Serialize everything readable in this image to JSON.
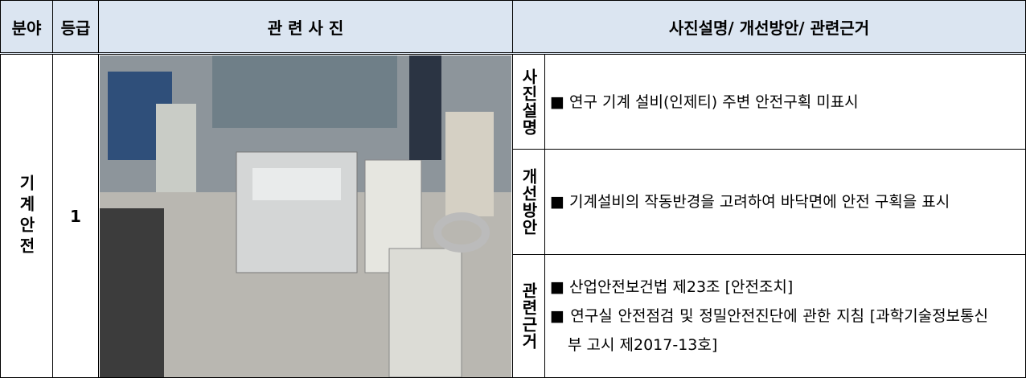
{
  "table": {
    "header": [
      "분야",
      "등급",
      "관 련 사 진",
      "사진설명/ 개선방안/ 관련근거"
    ],
    "row": {
      "field": "기계안전",
      "grade": "1",
      "sections": [
        {
          "label": "사진설명",
          "items": [
            "■ 연구 기계 설비(인제티) 주변 안전구획 미표시"
          ]
        },
        {
          "label": "개선방안",
          "items": [
            "■ 기계설비의 작동반경을 고려하여 바닥면에 안전 구획을 표시"
          ]
        },
        {
          "label": "관련근거",
          "items": [
            "■ 산업안전보건법 제23조 [안전조치]",
            "■ 연구실 안전점검 및 정밀안전진단에 관한 지침 [과학기술정보통신부 고시 제2017-13호]"
          ]
        }
      ]
    }
  }
}
